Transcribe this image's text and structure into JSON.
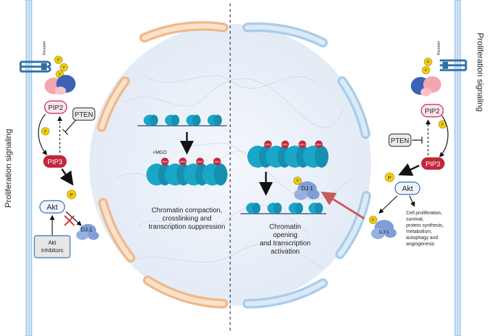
{
  "left": {
    "side_title": "Proliferation signaling",
    "receptor_label": "Receptor",
    "pip2": "PIP2",
    "pip3": "PIP3",
    "pten": "PTEN",
    "akt": "Akt",
    "akt_inhibitors_line1": "Akt",
    "akt_inhibitors_line2": "inhibitors",
    "dj1": "DJ-1",
    "mgo_note": "+MGO",
    "caption_line1": "Chromatin compaction,",
    "caption_line2": "crosslinking and",
    "caption_line3": "transcription suppression"
  },
  "right": {
    "side_title": "Proliferation signaling",
    "receptor_label": "Receptor",
    "pip2": "PIP2",
    "pip3": "PIP3",
    "pten": "PTEN",
    "akt": "Akt",
    "dj1_a": "DJ-1",
    "dj1_b": "DJ-1",
    "outcomes": [
      "Cell proliferation,",
      "survival,",
      "protein synthesis,",
      "metabolism,",
      "autophagy and",
      "angiogenesis"
    ],
    "caption_line1": "Chromatin",
    "caption_line2": "opening",
    "caption_line3": "and transcription",
    "caption_line4": "activation"
  },
  "phospho_label": "P",
  "mgo_tag": "MGO",
  "colors": {
    "membrane": "#9ec5e6",
    "membrane_dark": "#2f6fa8",
    "nucleus_left": "#f5c9a0",
    "nucleus_right": "#a9cdea",
    "nucleoplasm": "#eef3fa",
    "pip2_fill": "#fde6f0",
    "pip2_stroke": "#c2185b",
    "pip3_fill": "#c2273a",
    "phospho": "#f5d000",
    "nucleosome": "#1aa6c8",
    "dj1": "#7f9ed6",
    "red_arrow": "#c85a5a"
  }
}
